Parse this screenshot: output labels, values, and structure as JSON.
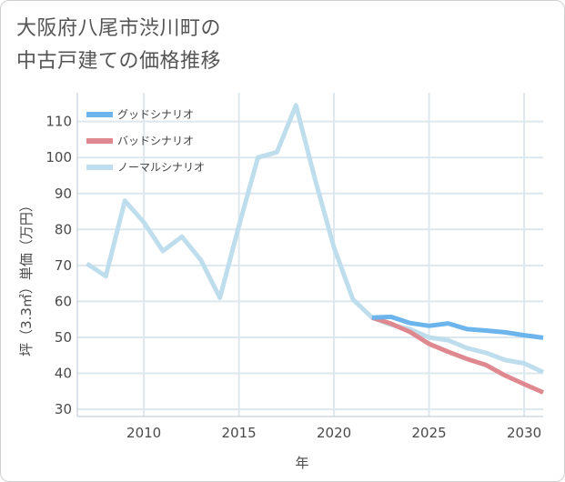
{
  "title": {
    "line1": "大阪府八尾市渋川町の",
    "line2": "中古戸建ての価格推移"
  },
  "chart_data": {
    "type": "line",
    "title": "大阪府八尾市渋川町の中古戸建ての価格推移",
    "xlabel": "年",
    "ylabel": "坪（3.3㎡）単価（万円）",
    "xlim": [
      2006.5,
      2031
    ],
    "ylim": [
      28,
      118
    ],
    "xticks": [
      2010,
      2015,
      2020,
      2025,
      2030
    ],
    "yticks": [
      30,
      40,
      50,
      60,
      70,
      80,
      90,
      100,
      110
    ],
    "grid": true,
    "legend_position": "top-left",
    "series": [
      {
        "name": "グッドシナリオ",
        "color": "#6cb4ec",
        "x": [
          2022,
          2023,
          2024,
          2025,
          2026,
          2027,
          2028,
          2029,
          2030,
          2031
        ],
        "values": [
          55.5,
          55.7,
          54.0,
          53.2,
          53.9,
          52.3,
          51.9,
          51.4,
          50.6,
          49.9
        ]
      },
      {
        "name": "バッドシナリオ",
        "color": "#e0888f",
        "x": [
          2022,
          2023,
          2024,
          2025,
          2026,
          2027,
          2028,
          2029,
          2030,
          2031
        ],
        "values": [
          55.5,
          53.8,
          51.5,
          48.2,
          46.0,
          44.0,
          42.3,
          39.4,
          37.0,
          34.7
        ]
      },
      {
        "name": "ノーマルシナリオ",
        "color": "#bfdeed",
        "x": [
          2007,
          2008,
          2009,
          2010,
          2011,
          2012,
          2013,
          2014,
          2015,
          2016,
          2017,
          2018,
          2019,
          2020,
          2021,
          2022,
          2023,
          2024,
          2025,
          2026,
          2027,
          2028,
          2029,
          2030,
          2031
        ],
        "values": [
          70.5,
          67.0,
          88.0,
          82.0,
          74.0,
          78.0,
          71.5,
          61.0,
          81.0,
          100.0,
          101.5,
          114.5,
          94.0,
          75.0,
          60.5,
          55.5,
          53.5,
          52.3,
          50.0,
          49.2,
          47.0,
          45.7,
          43.7,
          42.8,
          40.3
        ]
      }
    ]
  }
}
